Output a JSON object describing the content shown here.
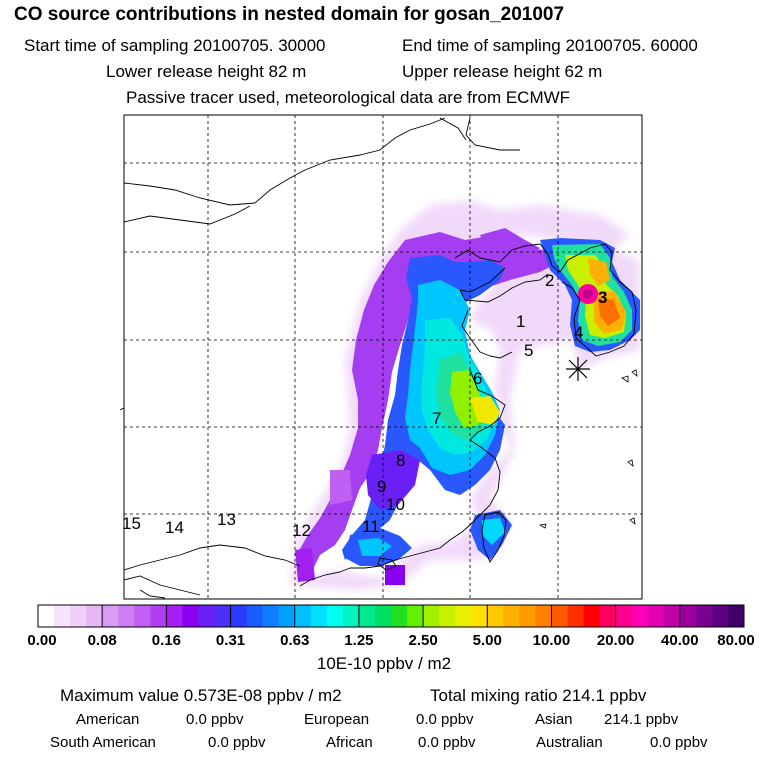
{
  "header": {
    "title": "CO  source contributions in nested domain for gosan_201007",
    "start_time": "Start time of sampling 20100705. 30000",
    "end_time": "End time of sampling 20100705. 60000",
    "lower_height": "Lower release height   82 m",
    "upper_height": "Upper release height   62 m",
    "tracer_note": "Passive tracer used, meteorological data are from ECMWF"
  },
  "map": {
    "region_labels": [
      {
        "id": "1",
        "label": "1"
      },
      {
        "id": "2",
        "label": "2"
      },
      {
        "id": "3",
        "label": "3"
      },
      {
        "id": "4",
        "label": "4"
      },
      {
        "id": "5",
        "label": "5"
      },
      {
        "id": "6",
        "label": "6"
      },
      {
        "id": "7",
        "label": "7"
      },
      {
        "id": "8",
        "label": "8"
      },
      {
        "id": "9",
        "label": "9"
      },
      {
        "id": "10",
        "label": "10"
      },
      {
        "id": "11",
        "label": "11"
      },
      {
        "id": "12",
        "label": "12"
      },
      {
        "id": "13",
        "label": "13"
      },
      {
        "id": "14",
        "label": "14"
      },
      {
        "id": "15",
        "label": "15"
      }
    ],
    "receptor_marker": "asterisk"
  },
  "colorbar": {
    "labels": [
      "0.00",
      "0.08",
      "0.16",
      "0.31",
      "0.63",
      "1.25",
      "2.50",
      "5.00",
      "10.00",
      "20.00",
      "40.00",
      "80.00"
    ],
    "colors": [
      "#ffffff",
      "#f6e3fb",
      "#eecff8",
      "#e6b9f6",
      "#d99cf5",
      "#cc7ef3",
      "#c260f1",
      "#b33ef0",
      "#a51ef2",
      "#8a00f0",
      "#6a20f4",
      "#4a30f8",
      "#2a3aff",
      "#1a5cff",
      "#0f7fff",
      "#00a0ff",
      "#00c0ff",
      "#00e0ff",
      "#00ffee",
      "#00f5c0",
      "#00e890",
      "#00e060",
      "#20e020",
      "#60f000",
      "#a0f000",
      "#c8f000",
      "#e8f000",
      "#ffe000",
      "#ffc800",
      "#ffb000",
      "#ff9a00",
      "#ff8000",
      "#ff5a00",
      "#ff3000",
      "#ff0000",
      "#ff0060",
      "#ff0090",
      "#ff00b4",
      "#e000b0",
      "#c000a8",
      "#9c009c",
      "#7a0090",
      "#5c0080",
      "#40006a"
    ],
    "unit": "10E-10 ppbv / m2"
  },
  "footer": {
    "max_value": "Maximum value  0.573E-08 ppbv / m2",
    "total_mixing": "Total mixing ratio      214.1 ppbv",
    "american": "American",
    "american_val": "0.0 ppbv",
    "european": "European",
    "european_val": "0.0 ppbv",
    "asian": "Asian",
    "asian_val": "214.1 ppbv",
    "south_american": "South American",
    "south_american_val": "0.0 ppbv",
    "african": "African",
    "african_val": "0.0 ppbv",
    "australian": "Australian",
    "australian_val": "0.0 ppbv"
  }
}
